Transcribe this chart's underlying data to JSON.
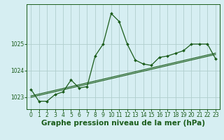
{
  "xlabel": "Graphe pression niveau de la mer (hPa)",
  "bg_color": "#d6eef2",
  "grid_color": "#b0cece",
  "line_color": "#1a5c1a",
  "x_values": [
    0,
    1,
    2,
    3,
    4,
    5,
    6,
    7,
    8,
    9,
    10,
    11,
    12,
    13,
    14,
    15,
    16,
    17,
    18,
    19,
    20,
    21,
    22,
    23
  ],
  "y_main": [
    1023.3,
    1022.85,
    1022.85,
    1023.1,
    1023.2,
    1023.65,
    1023.35,
    1023.4,
    1024.55,
    1025.0,
    1026.15,
    1025.85,
    1025.0,
    1024.4,
    1024.25,
    1024.2,
    1024.5,
    1024.55,
    1024.65,
    1024.75,
    1025.0,
    1025.0,
    1025.0,
    1024.45
  ],
  "y_trend1": [
    1023.0,
    1023.07,
    1023.14,
    1023.21,
    1023.28,
    1023.35,
    1023.42,
    1023.49,
    1023.56,
    1023.63,
    1023.7,
    1023.77,
    1023.84,
    1023.91,
    1023.98,
    1024.05,
    1024.12,
    1024.19,
    1024.26,
    1024.33,
    1024.4,
    1024.47,
    1024.54,
    1024.61
  ],
  "y_trend2": [
    1023.05,
    1023.12,
    1023.19,
    1023.26,
    1023.33,
    1023.4,
    1023.47,
    1023.54,
    1023.61,
    1023.68,
    1023.75,
    1023.82,
    1023.89,
    1023.96,
    1024.03,
    1024.1,
    1024.17,
    1024.24,
    1024.31,
    1024.38,
    1024.45,
    1024.52,
    1024.59,
    1024.66
  ],
  "ylim": [
    1022.55,
    1026.5
  ],
  "yticks": [
    1023,
    1024,
    1025
  ],
  "xlim": [
    -0.5,
    23.5
  ],
  "xticks": [
    0,
    1,
    2,
    3,
    4,
    5,
    6,
    7,
    8,
    9,
    10,
    11,
    12,
    13,
    14,
    15,
    16,
    17,
    18,
    19,
    20,
    21,
    22,
    23
  ],
  "tick_fontsize": 5.5,
  "xlabel_fontsize": 7.5
}
